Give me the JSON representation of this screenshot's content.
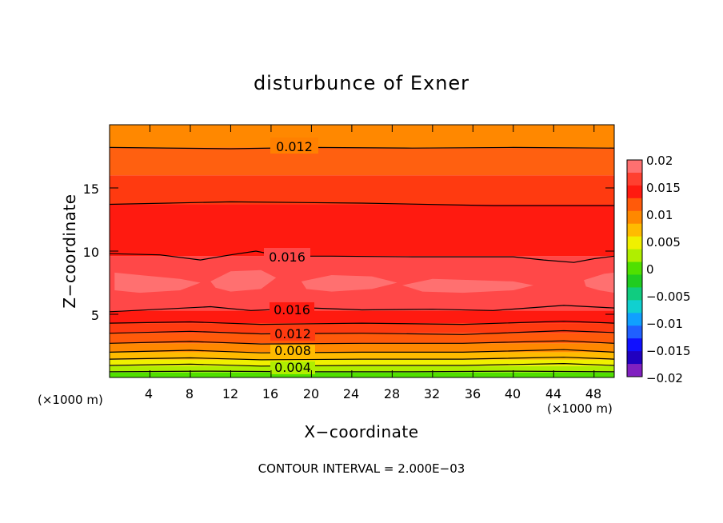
{
  "chart_data": {
    "type": "heatmap",
    "title": "disturbunce of Exner",
    "xlabel": "X−coordinate",
    "ylabel": "Z−coordinate",
    "x_unit_label": "(×1000 m)",
    "y_unit_label": "(×1000 m)",
    "xlim": [
      0,
      50
    ],
    "ylim": [
      0,
      20
    ],
    "x_ticks": [
      "4",
      "8",
      "12",
      "16",
      "20",
      "24",
      "28",
      "32",
      "36",
      "40",
      "44",
      "48"
    ],
    "y_ticks": [
      "5",
      "10",
      "15"
    ],
    "footer": "CONTOUR INTERVAL = 2.000E−03",
    "colorbar": {
      "labels": [
        "0.02",
        "0.015",
        "0.01",
        "0.005",
        "0",
        "−0.005",
        "−0.01",
        "−0.015",
        "−0.02"
      ],
      "colors": [
        "#ff7070",
        "#ff4030",
        "#ff1a10",
        "#ff5a0a",
        "#ff8800",
        "#ffbb00",
        "#f0f000",
        "#b0ee00",
        "#50e000",
        "#20cc20",
        "#10cc80",
        "#10d0d0",
        "#10a0ff",
        "#2060ff",
        "#1010ff",
        "#2000c0",
        "#8020c0"
      ]
    },
    "contour_labels": [
      {
        "text": "0.012"
      },
      {
        "text": "0.016"
      },
      {
        "text": "0.016"
      },
      {
        "text": "0.012"
      },
      {
        "text": "0.008"
      },
      {
        "text": "0.004"
      }
    ],
    "bands_ordered_low_z_to_high_z": [
      {
        "z_top": 0.4,
        "value": 0.001,
        "color": "#50e000"
      },
      {
        "z_top": 0.9,
        "value": 0.003,
        "color": "#b0ee00"
      },
      {
        "z_top": 1.4,
        "value": 0.005,
        "color": "#f0f000"
      },
      {
        "z_top": 2.0,
        "value": 0.007,
        "color": "#ffbb00"
      },
      {
        "z_top": 2.7,
        "value": 0.009,
        "color": "#ff8800"
      },
      {
        "z_top": 3.5,
        "value": 0.011,
        "color": "#ff5a0a"
      },
      {
        "z_top": 4.3,
        "value": 0.013,
        "color": "#ff3a10"
      },
      {
        "z_top": 5.3,
        "value": 0.015,
        "color": "#ff1a10"
      },
      {
        "z_top": 9.6,
        "value": 0.017,
        "color": "#ff4848"
      },
      {
        "z_top": 13.7,
        "value": 0.015,
        "color": "#ff1a10"
      },
      {
        "z_top": 16.0,
        "value": 0.013,
        "color": "#ff3a10"
      },
      {
        "z_top": 18.2,
        "value": 0.011,
        "color": "#ff6010"
      },
      {
        "z_top": 20.0,
        "value": 0.009,
        "color": "#ff8800"
      }
    ],
    "contours": [
      {
        "value": 0.002,
        "points": [
          [
            0,
            0.45
          ],
          [
            10,
            0.5
          ],
          [
            20,
            0.45
          ],
          [
            30,
            0.45
          ],
          [
            40,
            0.5
          ],
          [
            50,
            0.45
          ]
        ]
      },
      {
        "value": 0.004,
        "points": [
          [
            0,
            0.95
          ],
          [
            8,
            1.05
          ],
          [
            15,
            0.9
          ],
          [
            25,
            0.95
          ],
          [
            35,
            0.95
          ],
          [
            45,
            1.1
          ],
          [
            50,
            0.95
          ]
        ]
      },
      {
        "value": 0.006,
        "points": [
          [
            0,
            1.45
          ],
          [
            8,
            1.55
          ],
          [
            15,
            1.4
          ],
          [
            25,
            1.45
          ],
          [
            35,
            1.45
          ],
          [
            45,
            1.6
          ],
          [
            50,
            1.45
          ]
        ]
      },
      {
        "value": 0.008,
        "points": [
          [
            0,
            2.0
          ],
          [
            8,
            2.15
          ],
          [
            15,
            1.95
          ],
          [
            25,
            2.0
          ],
          [
            35,
            2.0
          ],
          [
            45,
            2.2
          ],
          [
            50,
            2.0
          ]
        ]
      },
      {
        "value": 0.01,
        "points": [
          [
            0,
            2.7
          ],
          [
            8,
            2.85
          ],
          [
            15,
            2.65
          ],
          [
            25,
            2.7
          ],
          [
            35,
            2.7
          ],
          [
            45,
            2.9
          ],
          [
            50,
            2.7
          ]
        ]
      },
      {
        "value": 0.012,
        "points": [
          [
            0,
            3.5
          ],
          [
            8,
            3.65
          ],
          [
            15,
            3.45
          ],
          [
            25,
            3.5
          ],
          [
            35,
            3.4
          ],
          [
            45,
            3.7
          ],
          [
            50,
            3.55
          ]
        ]
      },
      {
        "value": 0.014,
        "points": [
          [
            0,
            4.3
          ],
          [
            8,
            4.4
          ],
          [
            15,
            4.2
          ],
          [
            25,
            4.3
          ],
          [
            35,
            4.2
          ],
          [
            45,
            4.45
          ],
          [
            50,
            4.3
          ]
        ]
      },
      {
        "value": 0.016,
        "points": [
          [
            0,
            5.2
          ],
          [
            5,
            5.4
          ],
          [
            10,
            5.6
          ],
          [
            14,
            5.3
          ],
          [
            20,
            5.5
          ],
          [
            25,
            5.35
          ],
          [
            32,
            5.4
          ],
          [
            38,
            5.3
          ],
          [
            45,
            5.7
          ],
          [
            50,
            5.5
          ]
        ]
      },
      {
        "value": 0.016,
        "points": [
          [
            0,
            9.8
          ],
          [
            5,
            9.7
          ],
          [
            9,
            9.3
          ],
          [
            12,
            9.7
          ],
          [
            14.5,
            10.0
          ],
          [
            17,
            9.6
          ],
          [
            22,
            9.6
          ],
          [
            30,
            9.55
          ],
          [
            40,
            9.55
          ],
          [
            43,
            9.3
          ],
          [
            46,
            9.1
          ],
          [
            48,
            9.4
          ],
          [
            50,
            9.6
          ]
        ]
      },
      {
        "value": 0.014,
        "points": [
          [
            0,
            13.7
          ],
          [
            12,
            13.9
          ],
          [
            25,
            13.8
          ],
          [
            38,
            13.6
          ],
          [
            50,
            13.6
          ]
        ]
      },
      {
        "value": 0.012,
        "points": [
          [
            0,
            18.2
          ],
          [
            12,
            18.1
          ],
          [
            20,
            18.2
          ],
          [
            30,
            18.15
          ],
          [
            40,
            18.2
          ],
          [
            50,
            18.15
          ]
        ]
      }
    ],
    "max_regions": [
      {
        "points": [
          [
            0.5,
            8.3
          ],
          [
            3,
            8.1
          ],
          [
            7,
            7.8
          ],
          [
            9,
            7.5
          ],
          [
            7,
            6.9
          ],
          [
            3,
            6.7
          ],
          [
            0.5,
            6.9
          ]
        ]
      },
      {
        "points": [
          [
            10,
            7.6
          ],
          [
            12,
            8.4
          ],
          [
            15,
            8.5
          ],
          [
            16.5,
            7.9
          ],
          [
            15,
            7.0
          ],
          [
            12,
            6.8
          ],
          [
            10.5,
            7.1
          ]
        ]
      },
      {
        "points": [
          [
            19,
            7.6
          ],
          [
            22,
            8.1
          ],
          [
            26,
            8.0
          ],
          [
            28.5,
            7.5
          ],
          [
            26,
            7.0
          ],
          [
            22,
            6.8
          ],
          [
            19.5,
            7.0
          ]
        ]
      },
      {
        "points": [
          [
            29,
            7.3
          ],
          [
            32,
            7.8
          ],
          [
            36,
            7.7
          ],
          [
            40,
            7.6
          ],
          [
            42,
            7.3
          ],
          [
            40,
            6.9
          ],
          [
            35,
            6.7
          ],
          [
            31,
            6.8
          ]
        ]
      },
      {
        "points": [
          [
            47,
            7.7
          ],
          [
            49,
            8.2
          ],
          [
            50,
            8.3
          ],
          [
            50,
            6.7
          ],
          [
            48.5,
            6.9
          ],
          [
            47.2,
            7.2
          ]
        ]
      }
    ]
  }
}
